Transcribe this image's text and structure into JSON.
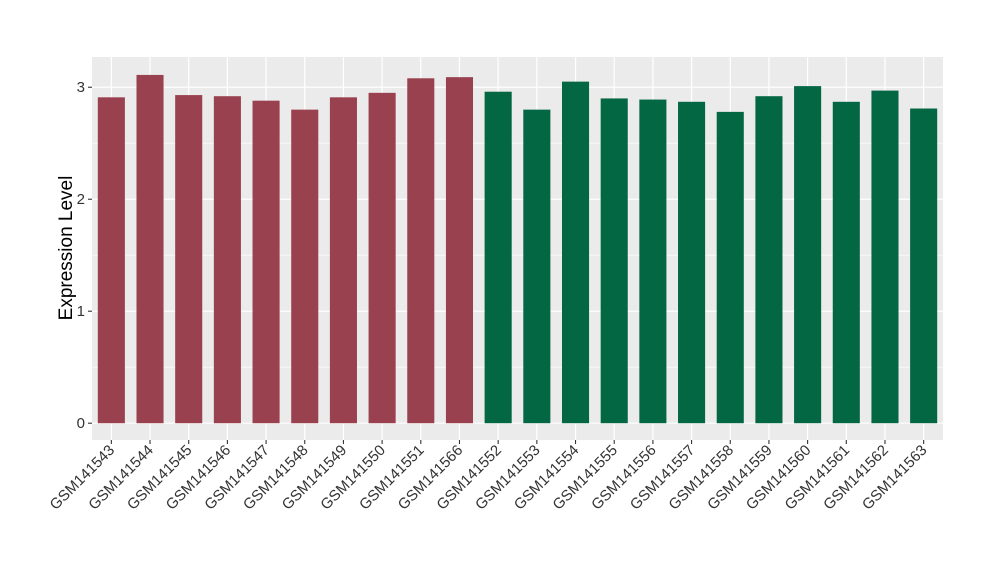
{
  "chart_data": {
    "type": "bar",
    "title": "",
    "xlabel": "",
    "ylabel": "Expression Level",
    "ylim": [
      -0.15,
      3.27
    ],
    "yticks": [
      0,
      1,
      2,
      3
    ],
    "grid": true,
    "legend": "none",
    "categories": [
      "GSM141543",
      "GSM141544",
      "GSM141545",
      "GSM141546",
      "GSM141547",
      "GSM141548",
      "GSM141549",
      "GSM141550",
      "GSM141551",
      "GSM141566",
      "GSM141552",
      "GSM141553",
      "GSM141554",
      "GSM141555",
      "GSM141556",
      "GSM141557",
      "GSM141558",
      "GSM141559",
      "GSM141560",
      "GSM141561",
      "GSM141562",
      "GSM141563"
    ],
    "values": [
      2.91,
      3.11,
      2.93,
      2.92,
      2.88,
      2.8,
      2.91,
      2.95,
      3.08,
      3.09,
      2.96,
      2.8,
      3.05,
      2.9,
      2.89,
      2.87,
      2.78,
      2.92,
      3.01,
      2.87,
      2.97,
      2.81
    ],
    "groups": [
      "a",
      "a",
      "a",
      "a",
      "a",
      "a",
      "a",
      "a",
      "a",
      "a",
      "b",
      "b",
      "b",
      "b",
      "b",
      "b",
      "b",
      "b",
      "b",
      "b",
      "b",
      "b"
    ],
    "group_colors": {
      "a": "#9a4150",
      "b": "#036744"
    },
    "panel_background": "#ebebeb",
    "grid_color": "#ffffff"
  }
}
